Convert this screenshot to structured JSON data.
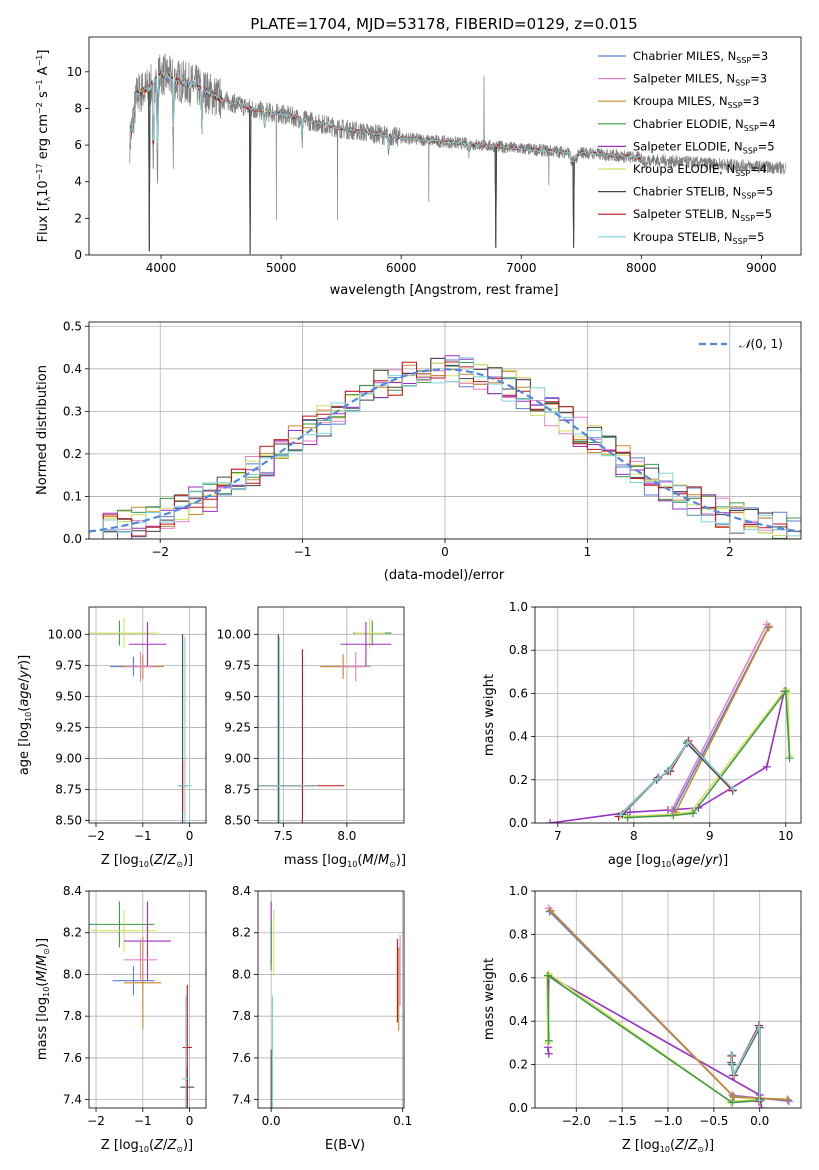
{
  "figure_title": "PLATE=1704, MJD=53178, FIBERID=0129, z=0.015",
  "colors": {
    "Chabrier MILES": "#5b7fd0",
    "Salpeter MILES": "#e681c8",
    "Kroupa MILES": "#c98a2a",
    "Chabrier ELODIE": "#3d9a46",
    "Salpeter ELODIE": "#9b30c4",
    "Kroupa ELODIE": "#d7e160",
    "Chabrier STELIB": "#444444",
    "Salpeter STELIB": "#c0161c",
    "Kroupa STELIB": "#7fd3dc",
    "data": "#808080",
    "normal": "#5588dd",
    "orange": "#e8743b",
    "lime": "#bfe27a"
  },
  "chart_data": [
    {
      "id": "spectrum",
      "type": "line",
      "title": "PLATE=1704, MJD=53178, FIBERID=0129, z=0.015",
      "xlabel": "wavelength [Angstrom, rest frame]",
      "ylabel": "Flux [f_λ 10^-17 erg cm^-2 s^-1 A^-1]",
      "xlim": [
        3400,
        9330
      ],
      "ylim": [
        0,
        11.9
      ],
      "xticks": [
        4000,
        5000,
        6000,
        7000,
        8000,
        9000
      ],
      "yticks": [
        0,
        2,
        4,
        6,
        8,
        10
      ],
      "legend_placement": "upper right",
      "legend": [
        {
          "name": "Chabrier MILES",
          "sub": "SSP",
          "n": "=3"
        },
        {
          "name": "Salpeter MILES",
          "sub": "SSP",
          "n": "=3"
        },
        {
          "name": "Kroupa MILES",
          "sub": "SSP",
          "n": "=3"
        },
        {
          "name": "Chabrier ELODIE",
          "sub": "SSP",
          "n": "=4"
        },
        {
          "name": "Salpeter ELODIE",
          "sub": "SSP",
          "n": "=5"
        },
        {
          "name": "Kroupa ELODIE",
          "sub": "SSP",
          "n": "=4"
        },
        {
          "name": "Chabrier STELIB",
          "sub": "SSP",
          "n": "=5"
        },
        {
          "name": "Salpeter STELIB",
          "sub": "SSP",
          "n": "=5"
        },
        {
          "name": "Kroupa STELIB",
          "sub": "SSP",
          "n": "=5"
        }
      ],
      "continuum_nodes": [
        [
          3740,
          6.2
        ],
        [
          3800,
          8.8
        ],
        [
          3900,
          9.1
        ],
        [
          4000,
          9.9
        ],
        [
          4100,
          9.6
        ],
        [
          4300,
          9.2
        ],
        [
          4500,
          8.5
        ],
        [
          4800,
          7.9
        ],
        [
          5000,
          7.7
        ],
        [
          5500,
          6.9
        ],
        [
          6000,
          6.4
        ],
        [
          6500,
          6.1
        ],
        [
          7000,
          5.8
        ],
        [
          7400,
          5.6
        ],
        [
          7420,
          5.0
        ],
        [
          7440,
          5.2
        ],
        [
          7500,
          5.6
        ],
        [
          8000,
          5.3
        ],
        [
          8050,
          4.9
        ]
      ],
      "absorption_lines": [
        [
          3935,
          3.0
        ],
        [
          3970,
          3.2
        ],
        [
          4102,
          5.5
        ],
        [
          4340,
          6.5
        ],
        [
          4861,
          6.8
        ],
        [
          5175,
          6.0
        ],
        [
          5895,
          5.5
        ],
        [
          6563,
          5.5
        ],
        [
          8542,
          5.0
        ]
      ],
      "data_spikes": [
        [
          4210,
          8.9
        ],
        [
          4960,
          1.9
        ],
        [
          5470,
          1.9
        ],
        [
          6230,
          2.9
        ],
        [
          6690,
          9.8
        ],
        [
          6790,
          1.5
        ],
        [
          7230,
          3.8
        ]
      ],
      "model_dropouts": [
        [
          3900,
          0.2
        ],
        [
          4740,
          0.05
        ],
        [
          6790,
          0.4
        ],
        [
          7435,
          0.4
        ]
      ],
      "data_range": [
        3740,
        9200
      ],
      "model_range": [
        3740,
        8050
      ]
    },
    {
      "id": "residuals",
      "type": "histogram",
      "xlabel": "(data-model)/error",
      "ylabel": "Normed distribution",
      "xlim": [
        -2.5,
        2.5
      ],
      "ylim": [
        0,
        0.51
      ],
      "xticks": [
        -2,
        -1,
        0,
        1,
        2
      ],
      "yticks": [
        0.0,
        0.1,
        0.2,
        0.3,
        0.4,
        0.5
      ],
      "grid": true,
      "bin_width": 0.1,
      "reference_curve": {
        "name": "N(0,1)",
        "type": "gaussian",
        "mean": 0,
        "sigma": 1
      },
      "legend_placement": "upper right",
      "series_count": 9,
      "jitter_seeds": [
        11,
        23,
        37,
        41,
        53,
        67,
        79,
        83,
        97
      ]
    },
    {
      "id": "age_vs_Z",
      "type": "errorbar",
      "xlabel": "Z [log10(Z/Z_sun)]",
      "ylabel": "age [log10(age/yr)]",
      "xlim": [
        -2.15,
        0.35
      ],
      "ylim": [
        8.48,
        10.22
      ],
      "xticks": [
        -2,
        -1,
        0
      ],
      "yticks": [
        8.5,
        8.75,
        9.0,
        9.25,
        9.5,
        9.75,
        10.0
      ],
      "ytick_labels": [
        "8.50",
        "8.75",
        "9.00",
        "9.25",
        "9.50",
        "9.75",
        "10.00"
      ],
      "grid": true,
      "points": [
        {
          "s": "Chabrier ELODIE",
          "x": -1.5,
          "y": 10.01,
          "xerr": 0.6,
          "yerr": 0.1
        },
        {
          "s": "Kroupa ELODIE",
          "x": -1.4,
          "y": 10.01,
          "xerr": 0.75,
          "yerr": 0.12
        },
        {
          "s": "Salpeter ELODIE",
          "x": -0.9,
          "y": 9.92,
          "xerr": 0.4,
          "yerr": 0.18
        },
        {
          "s": "Chabrier MILES",
          "x": -1.2,
          "y": 9.74,
          "xerr": 0.5,
          "yerr": 0.08
        },
        {
          "s": "Kroupa MILES",
          "x": -1.0,
          "y": 9.74,
          "xerr": 0.45,
          "yerr": 0.1
        },
        {
          "s": "Salpeter MILES",
          "x": -1.05,
          "y": 9.74,
          "xerr": 0.3,
          "yerr": 0.12
        },
        {
          "s": "Chabrier STELIB",
          "x": -0.15,
          "y": 8.78,
          "xerr": 0.06,
          "yerr": 1.22
        },
        {
          "s": "Salpeter STELIB",
          "x": -0.15,
          "y": 8.78,
          "xerr": 0.1,
          "yerr": 0.2
        },
        {
          "s": "Kroupa STELIB",
          "x": -0.1,
          "y": 8.78,
          "xerr": 0.15,
          "yerr": 1.2
        }
      ]
    },
    {
      "id": "age_vs_mass",
      "type": "errorbar",
      "xlabel": "mass [log10(M/M_sun)]",
      "ylabel": "",
      "xlim": [
        7.3,
        8.45
      ],
      "ylim": [
        8.48,
        10.22
      ],
      "xticks": [
        7.5,
        8.0
      ],
      "yticks": [
        8.5,
        8.75,
        9.0,
        9.25,
        9.5,
        9.75,
        10.0
      ],
      "ytick_labels": [
        "8.50",
        "8.75",
        "9.00",
        "9.25",
        "9.50",
        "9.75",
        "10.00"
      ],
      "grid": true,
      "points": [
        {
          "s": "Chabrier ELODIE",
          "x": 8.2,
          "y": 10.01,
          "xerr": 0.15,
          "yerr": 0.1
        },
        {
          "s": "Kroupa ELODIE",
          "x": 8.18,
          "y": 10.01,
          "xerr": 0.12,
          "yerr": 0.12
        },
        {
          "s": "Salpeter ELODIE",
          "x": 8.15,
          "y": 9.92,
          "xerr": 0.2,
          "yerr": 0.18
        },
        {
          "s": "Chabrier MILES",
          "x": 7.97,
          "y": 9.74,
          "xerr": 0.15,
          "yerr": 0.08
        },
        {
          "s": "Kroupa MILES",
          "x": 7.97,
          "y": 9.74,
          "xerr": 0.18,
          "yerr": 0.1
        },
        {
          "s": "Salpeter MILES",
          "x": 8.07,
          "y": 9.74,
          "xerr": 0.12,
          "yerr": 0.12
        },
        {
          "s": "Chabrier STELIB",
          "x": 7.46,
          "y": 8.78,
          "xerr": 0.3,
          "yerr": 1.22
        },
        {
          "s": "Salpeter STELIB",
          "x": 7.65,
          "y": 8.78,
          "xerr": 0.33,
          "yerr": 1.1
        },
        {
          "s": "Kroupa STELIB",
          "x": 7.47,
          "y": 8.78,
          "xerr": 0.3,
          "yerr": 1.2
        }
      ]
    },
    {
      "id": "weight_vs_age",
      "type": "line",
      "xlabel": "age [log10(age/yr)]",
      "ylabel": "mass weight",
      "xlim": [
        6.7,
        10.2
      ],
      "ylim": [
        0,
        1
      ],
      "xticks": [
        7,
        8,
        9,
        10
      ],
      "yticks": [
        0.0,
        0.2,
        0.4,
        0.6,
        0.8,
        1.0
      ],
      "grid": true,
      "series": [
        {
          "s": "Salpeter ELODIE",
          "x": [
            6.9,
            7.95,
            8.45,
            8.85,
            9.75,
            9.98
          ],
          "y": [
            0.0,
            0.05,
            0.06,
            0.07,
            0.26,
            0.61
          ]
        },
        {
          "s": "Kroupa ELODIE",
          "x": [
            7.9,
            8.5,
            8.75,
            10.0,
            10.03,
            10.05
          ],
          "y": [
            0.03,
            0.04,
            0.05,
            0.62,
            0.6,
            0.31
          ]
        },
        {
          "s": "Chabrier ELODIE",
          "x": [
            7.92,
            8.52,
            8.78,
            10.0,
            10.05
          ],
          "y": [
            0.025,
            0.035,
            0.045,
            0.61,
            0.3
          ]
        },
        {
          "s": "Salpeter MILES",
          "x": [
            8.5,
            9.75
          ],
          "y": [
            0.06,
            0.92
          ]
        },
        {
          "s": "Chabrier MILES",
          "x": [
            8.52,
            9.77
          ],
          "y": [
            0.055,
            0.905
          ]
        },
        {
          "s": "Kroupa MILES",
          "x": [
            8.55,
            9.78
          ],
          "y": [
            0.05,
            0.91
          ]
        },
        {
          "s": "Chabrier STELIB",
          "x": [
            7.85,
            8.3,
            8.45,
            8.7,
            9.3
          ],
          "y": [
            0.04,
            0.2,
            0.24,
            0.37,
            0.15
          ]
        },
        {
          "s": "Salpeter STELIB",
          "x": [
            7.8,
            8.32,
            8.48,
            8.72,
            9.3
          ],
          "y": [
            0.03,
            0.21,
            0.24,
            0.38,
            0.15
          ]
        },
        {
          "s": "Kroupa STELIB",
          "x": [
            7.82,
            8.31,
            8.47,
            8.71,
            9.31
          ],
          "y": [
            0.035,
            0.205,
            0.245,
            0.375,
            0.155
          ]
        }
      ]
    },
    {
      "id": "mass_vs_Z",
      "type": "errorbar",
      "xlabel": "Z [log10(Z/Z_sun)]",
      "ylabel": "mass [log10(M/M_sun)]",
      "xlim": [
        -2.15,
        0.35
      ],
      "ylim": [
        7.36,
        8.4
      ],
      "xticks": [
        -2,
        -1,
        0
      ],
      "yticks": [
        7.4,
        7.6,
        7.8,
        8.0,
        8.2,
        8.4
      ],
      "grid": true,
      "points": [
        {
          "s": "Chabrier ELODIE",
          "x": -1.5,
          "y": 8.24,
          "xerr": 0.75,
          "yerr": 0.11
        },
        {
          "s": "Kroupa ELODIE",
          "x": -1.4,
          "y": 8.21,
          "xerr": 0.7,
          "yerr": 0.1
        },
        {
          "s": "Salpeter ELODIE",
          "x": -0.9,
          "y": 8.16,
          "xerr": 0.5,
          "yerr": 0.19
        },
        {
          "s": "Chabrier MILES",
          "x": -1.2,
          "y": 7.97,
          "xerr": 0.45,
          "yerr": 0.07
        },
        {
          "s": "Kroupa MILES",
          "x": -1.0,
          "y": 7.96,
          "xerr": 0.4,
          "yerr": 0.22
        },
        {
          "s": "Salpeter MILES",
          "x": -1.05,
          "y": 8.07,
          "xerr": 0.35,
          "yerr": 0.1
        },
        {
          "s": "Chabrier STELIB",
          "x": -0.05,
          "y": 7.46,
          "xerr": 0.15,
          "yerr": 0.1
        },
        {
          "s": "Salpeter STELIB",
          "x": -0.05,
          "y": 7.65,
          "xerr": 0.1,
          "yerr": 0.3
        },
        {
          "s": "Kroupa STELIB",
          "x": -0.08,
          "y": 7.5,
          "xerr": 0.08,
          "yerr": 0.4
        }
      ]
    },
    {
      "id": "mass_vs_ebv",
      "type": "errorbar",
      "xlabel": "E(B-V)",
      "ylabel": "",
      "xlim": [
        -0.01,
        0.101
      ],
      "ylim": [
        7.36,
        8.4
      ],
      "xticks": [
        0.0,
        0.1
      ],
      "yticks": [
        7.4,
        7.6,
        7.8,
        8.0,
        8.2,
        8.4
      ],
      "grid": true,
      "points": [
        {
          "s": "Salpeter ELODIE",
          "x": 0.0,
          "y": 8.2,
          "xerr": 0.0,
          "yerr": 0.15
        },
        {
          "s": "Kroupa ELODIE",
          "x": 0.002,
          "y": 8.15,
          "xerr": 0.0,
          "yerr": 0.16
        },
        {
          "s": "Chabrier ELODIE",
          "x": 0.0,
          "y": 8.14,
          "xerr": 0.0,
          "yerr": 0.12
        },
        {
          "s": "Kroupa STELIB",
          "x": 0.001,
          "y": 7.55,
          "xerr": 0.0,
          "yerr": 0.35
        },
        {
          "s": "Chabrier STELIB",
          "x": 0.0,
          "y": 7.5,
          "xerr": 0.0,
          "yerr": 0.14
        },
        {
          "s": "Salpeter MILES",
          "x": 0.098,
          "y": 8.02,
          "xerr": 0.0,
          "yerr": 0.17
        },
        {
          "s": "Kroupa MILES",
          "x": 0.097,
          "y": 7.93,
          "xerr": 0.0,
          "yerr": 0.2
        },
        {
          "s": "Salpeter STELIB",
          "x": 0.096,
          "y": 7.97,
          "xerr": 0.0,
          "yerr": 0.2
        }
      ]
    },
    {
      "id": "weight_vs_Z",
      "type": "line",
      "xlabel": "Z [log10(Z/Z_sun)]",
      "ylabel": "mass weight",
      "xlim": [
        -2.45,
        0.45
      ],
      "ylim": [
        0,
        1
      ],
      "xticks": [
        -2.0,
        -1.5,
        -1.0,
        -0.5,
        0.0
      ],
      "xtick_labels": [
        "−2.0",
        "−1.5",
        "−1.0",
        "−0.5",
        "0.0"
      ],
      "yticks": [
        0.0,
        0.2,
        0.4,
        0.6,
        0.8,
        1.0
      ],
      "grid": true,
      "series": [
        {
          "s": "Salpeter ELODIE",
          "x": [
            -2.3,
            -2.31,
            -2.3,
            0.0,
            0.02
          ],
          "y": [
            0.25,
            0.28,
            0.61,
            0.06,
            0.0
          ]
        },
        {
          "s": "Kroupa ELODIE",
          "x": [
            -2.31,
            -2.32,
            -2.3,
            -0.32,
            0.0
          ],
          "y": [
            0.3,
            0.6,
            0.62,
            0.03,
            0.04
          ]
        },
        {
          "s": "Chabrier ELODIE",
          "x": [
            -2.3,
            -2.31,
            -0.3,
            0.01
          ],
          "y": [
            0.31,
            0.61,
            0.025,
            0.035
          ]
        },
        {
          "s": "Salpeter MILES",
          "x": [
            -2.3,
            -0.3,
            0.32
          ],
          "y": [
            0.92,
            0.06,
            0.03
          ]
        },
        {
          "s": "Chabrier MILES",
          "x": [
            -2.29,
            -0.29,
            0.31
          ],
          "y": [
            0.905,
            0.055,
            0.035
          ]
        },
        {
          "s": "Kroupa MILES",
          "x": [
            -2.28,
            -0.28,
            0.3
          ],
          "y": [
            0.91,
            0.05,
            0.04
          ]
        },
        {
          "s": "Chabrier STELIB",
          "x": [
            -0.3,
            -0.3,
            -0.28,
            0.0,
            0.0
          ],
          "y": [
            0.24,
            0.2,
            0.15,
            0.37,
            0.04
          ]
        },
        {
          "s": "Salpeter STELIB",
          "x": [
            -0.31,
            -0.31,
            -0.29,
            -0.01,
            -0.01
          ],
          "y": [
            0.24,
            0.21,
            0.15,
            0.38,
            0.03
          ]
        },
        {
          "s": "Kroupa STELIB",
          "x": [
            -0.305,
            -0.305,
            -0.285,
            -0.005,
            -0.005
          ],
          "y": [
            0.245,
            0.205,
            0.155,
            0.375,
            0.035
          ]
        }
      ]
    }
  ]
}
